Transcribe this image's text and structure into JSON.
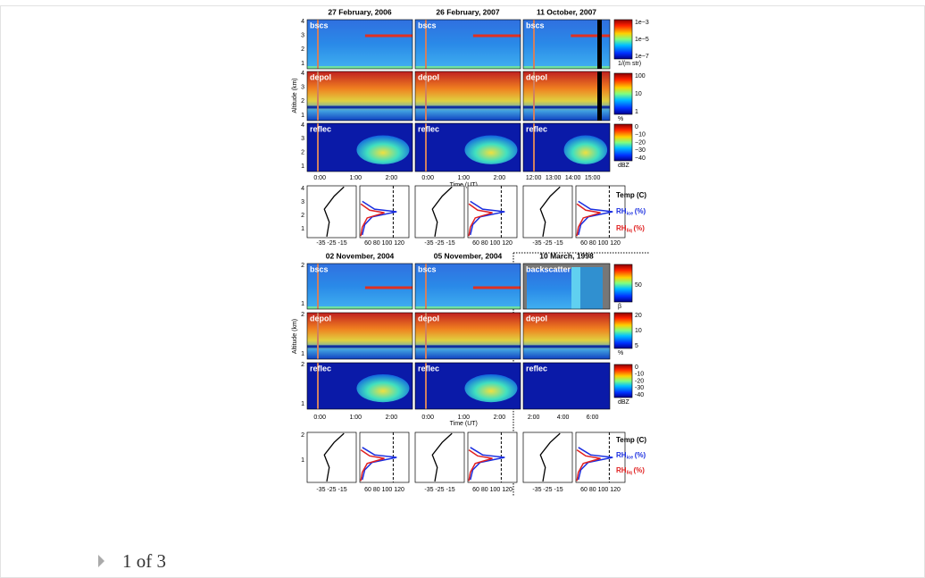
{
  "figure": {
    "top": {
      "columns": [
        {
          "title": "27 February, 2006",
          "panels": [
            "bscs",
            "depol",
            "reflec"
          ],
          "time_ticks": [
            "0:00",
            "1:00",
            "2:00"
          ]
        },
        {
          "title": "26 February, 2007",
          "panels": [
            "bscs",
            "depol",
            "reflec"
          ],
          "time_ticks": [
            "0:00",
            "1:00",
            "2:00"
          ]
        },
        {
          "title": "11 October, 2007",
          "panels": [
            "bscs",
            "depol",
            "reflec"
          ],
          "time_ticks": [
            "12:00",
            "13:00",
            "14:00",
            "15:00"
          ]
        }
      ],
      "time_label": "Time (UT)",
      "altitude_label": "Altitude (km)",
      "altitude_ticks": [
        "4",
        "3",
        "2",
        "1"
      ],
      "colorbars": [
        {
          "ticks": [
            "1e−3",
            "1e−5",
            "1e−7"
          ],
          "unit": "1/(m str)"
        },
        {
          "ticks": [
            "100",
            "10",
            "1"
          ],
          "unit": "%"
        },
        {
          "ticks": [
            "0",
            "−10",
            "−20",
            "−30",
            "−40"
          ],
          "unit": "dBZ"
        }
      ],
      "profile_x_ticks": [
        "-35 -25 -15",
        "60  80 100 120"
      ]
    },
    "bottom": {
      "columns": [
        {
          "title": "02 November, 2004",
          "panels": [
            "bscs",
            "depol",
            "reflec"
          ],
          "time_ticks": [
            "0:00",
            "1:00",
            "2:00"
          ]
        },
        {
          "title": "05 November, 2004",
          "panels": [
            "bscs",
            "depol",
            "reflec"
          ],
          "time_ticks": [
            "0:00",
            "1:00",
            "2:00"
          ]
        },
        {
          "title": "10 March, 1998",
          "panels": [
            "backscatter",
            "depol",
            "reflec"
          ],
          "time_ticks": [
            "2:00",
            "4:00",
            "6:00"
          ]
        }
      ],
      "time_label": "Time (UT)",
      "altitude_label": "Altitude (km)",
      "altitude_ticks": [
        "2",
        "1"
      ],
      "colorbars": [
        {
          "ticks": [
            "50"
          ],
          "unit": "β"
        },
        {
          "ticks": [
            "20",
            "10",
            "5"
          ],
          "unit": "%"
        },
        {
          "ticks": [
            "0",
            "-10",
            "-20",
            "-30",
            "-40"
          ],
          "unit": "dBZ"
        }
      ],
      "profile_x_ticks": [
        "-35 -25 -15",
        "60  80 100 120"
      ]
    },
    "legend": {
      "temp": "Temp (C)",
      "rh_ice": {
        "main": "RH",
        "sub": "ice",
        "unit": "(%)"
      },
      "rh_liq": {
        "main": "RH",
        "sub": "liq",
        "unit": "(%)"
      }
    },
    "footer": "1 of 3"
  }
}
